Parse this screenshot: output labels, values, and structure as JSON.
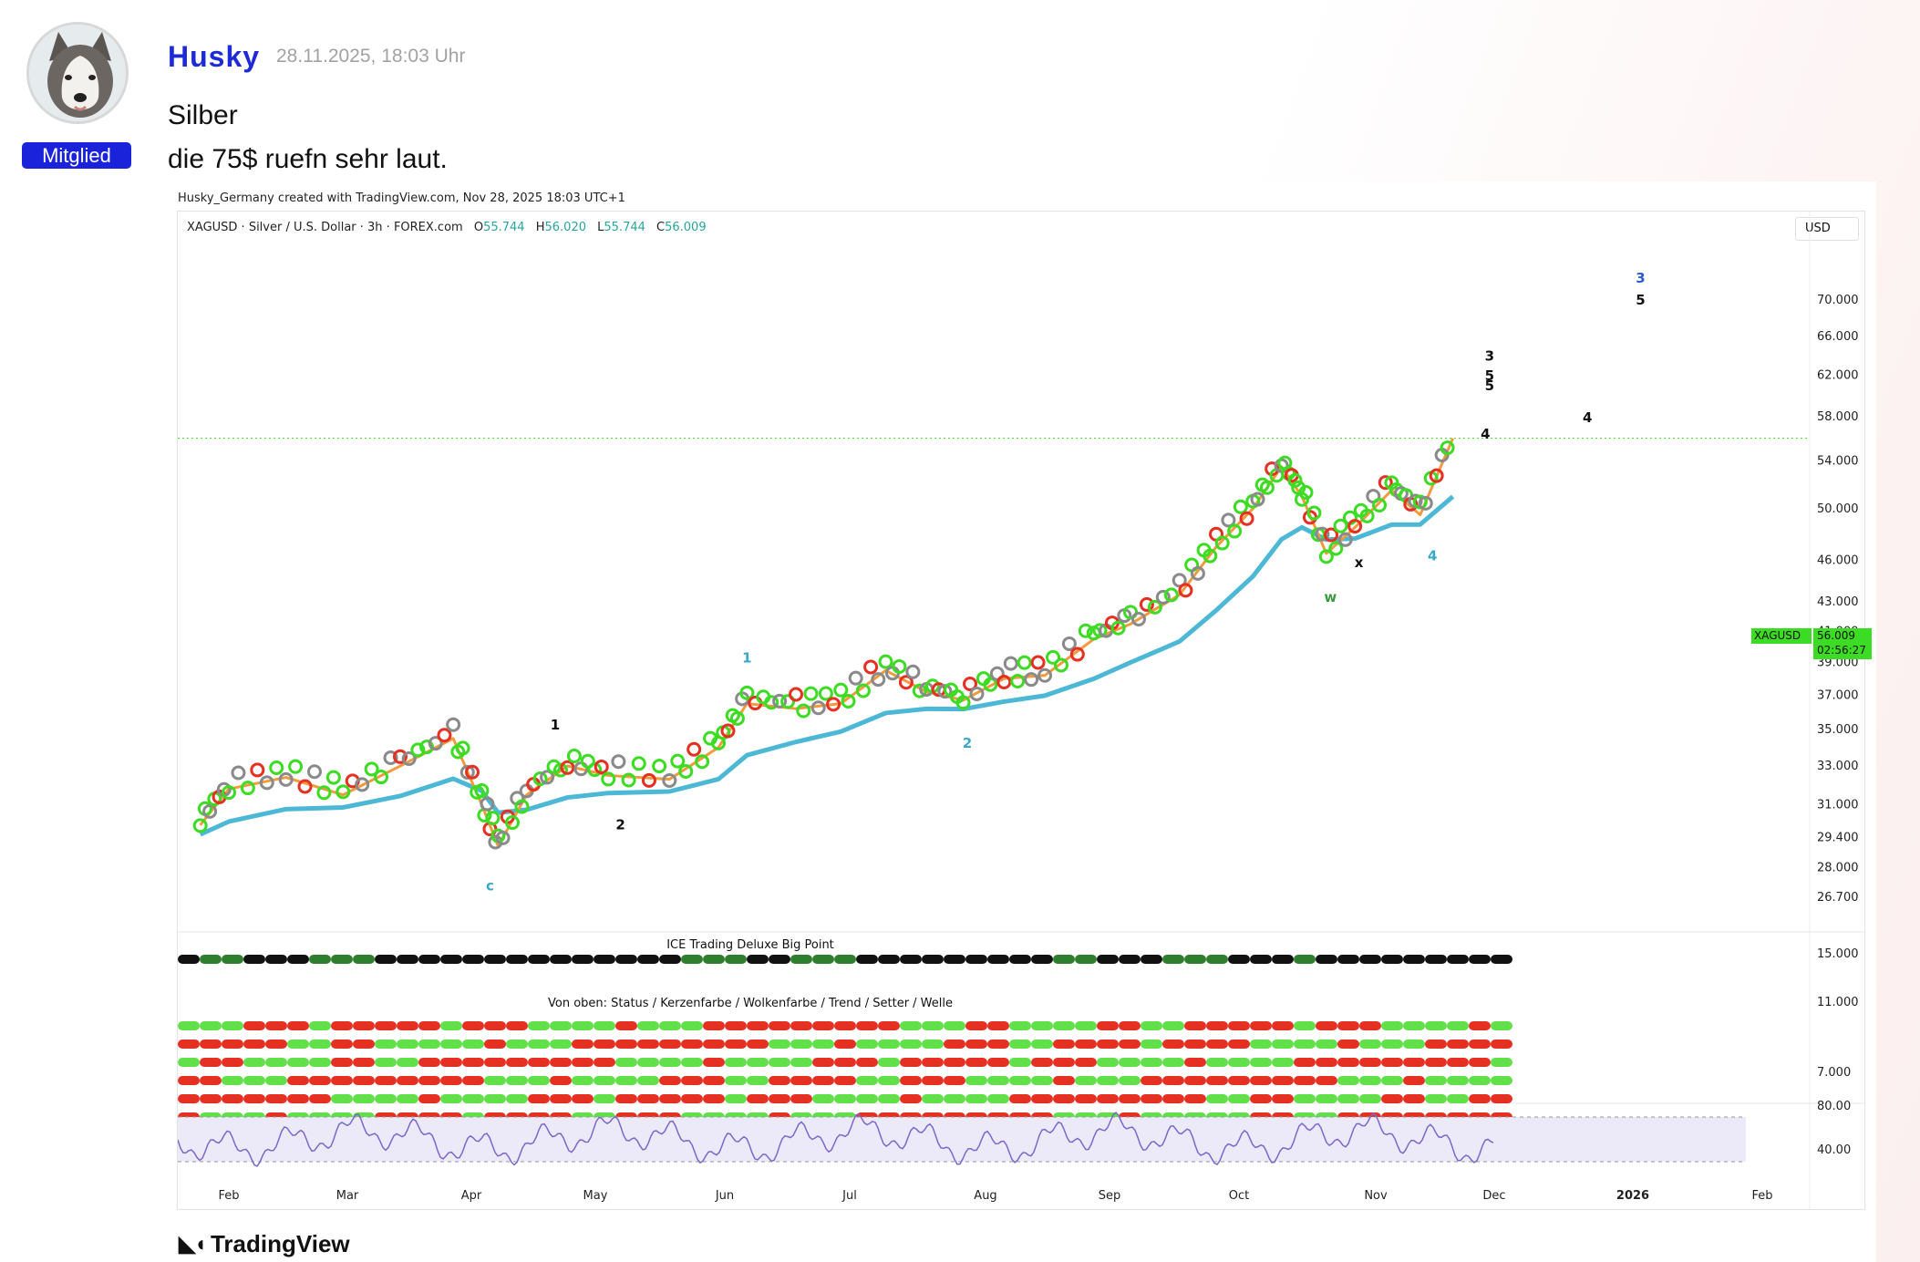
{
  "post": {
    "username": "Husky",
    "timestamp": "28.11.2025, 18:03 Uhr",
    "role_badge": "Mitglied",
    "lines": [
      "Silber",
      "die 75$ ruefn sehr laut."
    ]
  },
  "chart_image": {
    "credit": "Husky_Germany created with TradingView.com, Nov 28, 2025 18:03 UTC+1",
    "symbol_info": "XAGUSD · Silver / U.S. Dollar · 3h · FOREX.com",
    "ohlc": {
      "o_label": "O",
      "o": "55.744",
      "h_label": "H",
      "h": "56.020",
      "l_label": "L",
      "l": "55.744",
      "c_label": "C",
      "c": "56.009"
    },
    "currency_button": "USD",
    "price_tag_symbol": "XAGUSD",
    "price_tag_value": "56.009",
    "price_tag_countdown": "02:56:27",
    "indicator_title": "ICE Trading Deluxe Big Point",
    "indicator_subtitle": "Von oben: Status / Kerzenfarbe / Wolkenfarbe / Trend / Setter / Welle",
    "logo_text": "TradingView",
    "colors": {
      "accent": "#1d2ad8",
      "up": "#3ddc24",
      "down": "#e53022",
      "ema": "#4db8d6",
      "rsi": "#7b68c8"
    }
  },
  "chart_data": {
    "type": "line",
    "x_ticks": [
      "Feb",
      "Mar",
      "Apr",
      "May",
      "Jun",
      "Jul",
      "Aug",
      "Sep",
      "Oct",
      "Nov",
      "Dec",
      "2026",
      "Feb"
    ],
    "y_ticks": [
      "70.000",
      "66.000",
      "62.000",
      "58.000",
      "54.000",
      "50.000",
      "46.000",
      "43.000",
      "41.000",
      "39.000",
      "37.000",
      "35.000",
      "33.000",
      "31.000",
      "29.400",
      "28.000",
      "26.700"
    ],
    "y_scale": "log",
    "ylim": [
      26.7,
      74
    ],
    "x": [
      "Jan 25",
      "Feb 1",
      "Feb 15",
      "Mar 1",
      "Mar 15",
      "Mar 28",
      "Apr 4",
      "Apr 8",
      "Apr 15",
      "Apr 25",
      "May 5",
      "May 20",
      "Jun 1",
      "Jun 8",
      "Jun 20",
      "Jul 1",
      "Jul 12",
      "Jul 22",
      "Jul 31",
      "Aug 10",
      "Aug 20",
      "Sep 1",
      "Sep 10",
      "Sep 22",
      "Oct 1",
      "Oct 10",
      "Oct 17",
      "Oct 22",
      "Oct 28",
      "Nov 4",
      "Nov 13",
      "Nov 20",
      "Nov 28"
    ],
    "series": [
      {
        "values": [
          30.0,
          31.8,
          32.4,
          31.5,
          33.0,
          34.5,
          31.0,
          29.0,
          31.5,
          33.0,
          32.5,
          32.3,
          34.0,
          36.5,
          36.2,
          36.5,
          38.5,
          37.2,
          36.7,
          38.0,
          38.2,
          40.5,
          41.5,
          43.5,
          47.0,
          50.0,
          53.5,
          51.0,
          46.5,
          48.5,
          51.5,
          49.5,
          56.0
        ]
      }
    ],
    "wave_labels": [
      {
        "text": "c",
        "x": "Apr 6",
        "y": 27.0
      },
      {
        "text": "1",
        "x": "Apr 22",
        "y": 35.0
      },
      {
        "text": "2",
        "x": "May 8",
        "y": 29.8
      },
      {
        "text": "1",
        "x": "Jun 8",
        "y": 39.0
      },
      {
        "text": "2",
        "x": "Aug 1",
        "y": 34.0
      },
      {
        "text": "w",
        "x": "Oct 29",
        "y": 43.0
      },
      {
        "text": "x",
        "x": "Nov 5",
        "y": 45.5
      },
      {
        "text": "4",
        "x": "Nov 23",
        "y": 46.0
      },
      {
        "text": "3",
        "x": "Dec 7",
        "y": 63.5
      },
      {
        "text": "5",
        "x": "Dec 7",
        "y": 61.5
      },
      {
        "text": "5",
        "x": "Dec 7",
        "y": 60.5
      },
      {
        "text": "4",
        "x": "Dec 6",
        "y": 56.0
      },
      {
        "text": "4",
        "x": "Dec 31",
        "y": 57.5
      },
      {
        "text": "3",
        "x": "Jan 13",
        "y": 72.0
      },
      {
        "text": "5",
        "x": "Jan 13",
        "y": 69.5
      }
    ],
    "last_price": 56.009,
    "rsi": {
      "y_ticks": [
        "80.00",
        "40.00"
      ]
    },
    "indicator_y_ticks": [
      "15.000",
      "11.000",
      "7.000"
    ]
  }
}
